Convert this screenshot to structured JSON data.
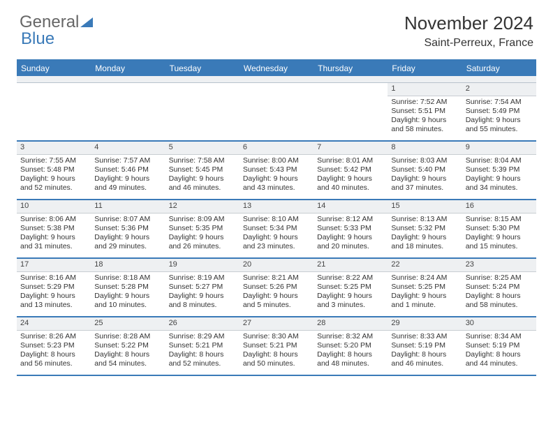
{
  "logo": {
    "part1": "General",
    "part2": "Blue"
  },
  "title": {
    "month": "November 2024",
    "location": "Saint-Perreux, France"
  },
  "colors": {
    "header_bg": "#3a7ab8",
    "header_text": "#ffffff",
    "daynum_bg": "#eef0f2",
    "border_accent": "#3a7ab8",
    "body_text": "#333333"
  },
  "day_headers": [
    "Sunday",
    "Monday",
    "Tuesday",
    "Wednesday",
    "Thursday",
    "Friday",
    "Saturday"
  ],
  "weeks": [
    [
      null,
      null,
      null,
      null,
      null,
      {
        "num": "1",
        "sunrise": "Sunrise: 7:52 AM",
        "sunset": "Sunset: 5:51 PM",
        "daylight": "Daylight: 9 hours and 58 minutes."
      },
      {
        "num": "2",
        "sunrise": "Sunrise: 7:54 AM",
        "sunset": "Sunset: 5:49 PM",
        "daylight": "Daylight: 9 hours and 55 minutes."
      }
    ],
    [
      {
        "num": "3",
        "sunrise": "Sunrise: 7:55 AM",
        "sunset": "Sunset: 5:48 PM",
        "daylight": "Daylight: 9 hours and 52 minutes."
      },
      {
        "num": "4",
        "sunrise": "Sunrise: 7:57 AM",
        "sunset": "Sunset: 5:46 PM",
        "daylight": "Daylight: 9 hours and 49 minutes."
      },
      {
        "num": "5",
        "sunrise": "Sunrise: 7:58 AM",
        "sunset": "Sunset: 5:45 PM",
        "daylight": "Daylight: 9 hours and 46 minutes."
      },
      {
        "num": "6",
        "sunrise": "Sunrise: 8:00 AM",
        "sunset": "Sunset: 5:43 PM",
        "daylight": "Daylight: 9 hours and 43 minutes."
      },
      {
        "num": "7",
        "sunrise": "Sunrise: 8:01 AM",
        "sunset": "Sunset: 5:42 PM",
        "daylight": "Daylight: 9 hours and 40 minutes."
      },
      {
        "num": "8",
        "sunrise": "Sunrise: 8:03 AM",
        "sunset": "Sunset: 5:40 PM",
        "daylight": "Daylight: 9 hours and 37 minutes."
      },
      {
        "num": "9",
        "sunrise": "Sunrise: 8:04 AM",
        "sunset": "Sunset: 5:39 PM",
        "daylight": "Daylight: 9 hours and 34 minutes."
      }
    ],
    [
      {
        "num": "10",
        "sunrise": "Sunrise: 8:06 AM",
        "sunset": "Sunset: 5:38 PM",
        "daylight": "Daylight: 9 hours and 31 minutes."
      },
      {
        "num": "11",
        "sunrise": "Sunrise: 8:07 AM",
        "sunset": "Sunset: 5:36 PM",
        "daylight": "Daylight: 9 hours and 29 minutes."
      },
      {
        "num": "12",
        "sunrise": "Sunrise: 8:09 AM",
        "sunset": "Sunset: 5:35 PM",
        "daylight": "Daylight: 9 hours and 26 minutes."
      },
      {
        "num": "13",
        "sunrise": "Sunrise: 8:10 AM",
        "sunset": "Sunset: 5:34 PM",
        "daylight": "Daylight: 9 hours and 23 minutes."
      },
      {
        "num": "14",
        "sunrise": "Sunrise: 8:12 AM",
        "sunset": "Sunset: 5:33 PM",
        "daylight": "Daylight: 9 hours and 20 minutes."
      },
      {
        "num": "15",
        "sunrise": "Sunrise: 8:13 AM",
        "sunset": "Sunset: 5:32 PM",
        "daylight": "Daylight: 9 hours and 18 minutes."
      },
      {
        "num": "16",
        "sunrise": "Sunrise: 8:15 AM",
        "sunset": "Sunset: 5:30 PM",
        "daylight": "Daylight: 9 hours and 15 minutes."
      }
    ],
    [
      {
        "num": "17",
        "sunrise": "Sunrise: 8:16 AM",
        "sunset": "Sunset: 5:29 PM",
        "daylight": "Daylight: 9 hours and 13 minutes."
      },
      {
        "num": "18",
        "sunrise": "Sunrise: 8:18 AM",
        "sunset": "Sunset: 5:28 PM",
        "daylight": "Daylight: 9 hours and 10 minutes."
      },
      {
        "num": "19",
        "sunrise": "Sunrise: 8:19 AM",
        "sunset": "Sunset: 5:27 PM",
        "daylight": "Daylight: 9 hours and 8 minutes."
      },
      {
        "num": "20",
        "sunrise": "Sunrise: 8:21 AM",
        "sunset": "Sunset: 5:26 PM",
        "daylight": "Daylight: 9 hours and 5 minutes."
      },
      {
        "num": "21",
        "sunrise": "Sunrise: 8:22 AM",
        "sunset": "Sunset: 5:25 PM",
        "daylight": "Daylight: 9 hours and 3 minutes."
      },
      {
        "num": "22",
        "sunrise": "Sunrise: 8:24 AM",
        "sunset": "Sunset: 5:25 PM",
        "daylight": "Daylight: 9 hours and 1 minute."
      },
      {
        "num": "23",
        "sunrise": "Sunrise: 8:25 AM",
        "sunset": "Sunset: 5:24 PM",
        "daylight": "Daylight: 8 hours and 58 minutes."
      }
    ],
    [
      {
        "num": "24",
        "sunrise": "Sunrise: 8:26 AM",
        "sunset": "Sunset: 5:23 PM",
        "daylight": "Daylight: 8 hours and 56 minutes."
      },
      {
        "num": "25",
        "sunrise": "Sunrise: 8:28 AM",
        "sunset": "Sunset: 5:22 PM",
        "daylight": "Daylight: 8 hours and 54 minutes."
      },
      {
        "num": "26",
        "sunrise": "Sunrise: 8:29 AM",
        "sunset": "Sunset: 5:21 PM",
        "daylight": "Daylight: 8 hours and 52 minutes."
      },
      {
        "num": "27",
        "sunrise": "Sunrise: 8:30 AM",
        "sunset": "Sunset: 5:21 PM",
        "daylight": "Daylight: 8 hours and 50 minutes."
      },
      {
        "num": "28",
        "sunrise": "Sunrise: 8:32 AM",
        "sunset": "Sunset: 5:20 PM",
        "daylight": "Daylight: 8 hours and 48 minutes."
      },
      {
        "num": "29",
        "sunrise": "Sunrise: 8:33 AM",
        "sunset": "Sunset: 5:19 PM",
        "daylight": "Daylight: 8 hours and 46 minutes."
      },
      {
        "num": "30",
        "sunrise": "Sunrise: 8:34 AM",
        "sunset": "Sunset: 5:19 PM",
        "daylight": "Daylight: 8 hours and 44 minutes."
      }
    ]
  ]
}
